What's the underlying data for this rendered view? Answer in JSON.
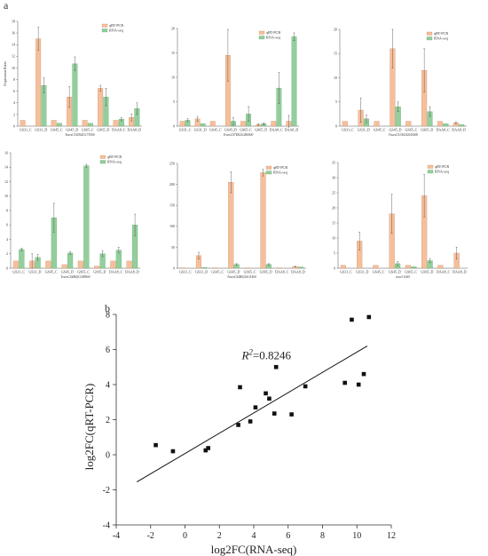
{
  "panel_labels": {
    "a": "a",
    "b": "b"
  },
  "colors": {
    "qrt": "#f6bf9b",
    "rna": "#93cf9c",
    "qrt_edge": "#c78a63",
    "rna_edge": "#5fa06a",
    "err": "#444444",
    "point": "#111111",
    "line": "#111111"
  },
  "chart_data": [
    {
      "type": "bar",
      "title": "",
      "xlabel": "TraesCS1D02G171900",
      "ylabel": "Expression Ratio",
      "ylim": [
        0,
        18
      ],
      "yticks": [
        0,
        2,
        4,
        6,
        8,
        10,
        12,
        14,
        16,
        18
      ],
      "categories": [
        "GS31_C",
        "GS31_D",
        "GS45_C",
        "GS45_D",
        "GS65_C",
        "GS65_D",
        "DAA8_C",
        "DAA8_D"
      ],
      "legend": "top-right",
      "series": [
        {
          "name": "qRT-PCR",
          "values": [
            1.0,
            15.0,
            1.0,
            5.0,
            1.0,
            6.5,
            1.0,
            1.5
          ],
          "errors": [
            0,
            2.0,
            0,
            1.8,
            0,
            0.5,
            0,
            0.6
          ]
        },
        {
          "name": "RNA-seq",
          "values": [
            0.0,
            7.0,
            0.5,
            10.7,
            0.5,
            5.0,
            1.2,
            3.0
          ],
          "errors": [
            0,
            1.3,
            0,
            1.2,
            0,
            1.5,
            0.3,
            1.0
          ]
        }
      ]
    },
    {
      "type": "bar",
      "title": "",
      "xlabel": "TraesCS7D02G286900",
      "ylabel": "",
      "ylim": [
        0,
        20
      ],
      "yticks": [
        0,
        5,
        10,
        15,
        20
      ],
      "categories": [
        "GS31_C",
        "GS31_D",
        "GS45_C",
        "GS45_D",
        "GS65_C",
        "GS65_D",
        "DAA8_C",
        "DAA8_D"
      ],
      "legend": "top-right",
      "series": [
        {
          "name": "qRT-PCR",
          "values": [
            1.0,
            1.5,
            1.0,
            14.5,
            1.0,
            0.3,
            1.0,
            1.0
          ],
          "errors": [
            0,
            0.5,
            0,
            5.3,
            0,
            0.2,
            0,
            1.2
          ]
        },
        {
          "name": "RNA-seq",
          "values": [
            1.2,
            0.5,
            0.0,
            1.0,
            2.5,
            0.5,
            7.8,
            18.3
          ],
          "errors": [
            0.3,
            0,
            0,
            0.8,
            1.5,
            0.2,
            3.2,
            0.8
          ]
        }
      ]
    },
    {
      "type": "bar",
      "title": "",
      "xlabel": "TraesCS1A02G043000",
      "ylabel": "",
      "ylim": [
        0,
        20
      ],
      "yticks": [
        0,
        5,
        10,
        15,
        20
      ],
      "categories": [
        "GS31_C",
        "GS31_D",
        "GS45_C",
        "GS45_D",
        "GS65_C",
        "GS65_D",
        "DAA8_C",
        "DAA8_D"
      ],
      "legend": "top-right",
      "series": [
        {
          "name": "qRT-PCR",
          "values": [
            1.0,
            3.3,
            1.0,
            16.0,
            1.0,
            11.5,
            1.0,
            0.7
          ],
          "errors": [
            0,
            2.5,
            0,
            4.0,
            0,
            4.5,
            0,
            0.2
          ]
        },
        {
          "name": "RNA-seq",
          "values": [
            0.0,
            1.5,
            0.0,
            4.0,
            0.0,
            3.0,
            0.5,
            0.3
          ],
          "errors": [
            0,
            0.8,
            0,
            1.0,
            0,
            1.0,
            0,
            0
          ]
        }
      ]
    },
    {
      "type": "bar",
      "title": "",
      "xlabel": "TraesCS4B02G349800",
      "ylabel": "Expression Ratio",
      "ylim": [
        0,
        16
      ],
      "yticks": [
        0,
        2,
        4,
        6,
        8,
        10,
        12,
        14,
        16
      ],
      "categories": [
        "GS31_C",
        "GS31_D",
        "GS45_C",
        "GS45_D",
        "GS65_C",
        "GS65_D",
        "DAA8_C",
        "DAA8_D"
      ],
      "legend": "top-right",
      "series": [
        {
          "name": "qRT-PCR",
          "values": [
            1.0,
            1.0,
            1.0,
            0.5,
            1.0,
            0.3,
            1.0,
            1.0
          ],
          "errors": [
            0,
            1.0,
            0,
            0,
            0,
            0,
            0,
            0
          ]
        },
        {
          "name": "RNA-seq",
          "values": [
            2.6,
            1.5,
            7.0,
            2.1,
            14.2,
            2.0,
            2.5,
            6.0
          ],
          "errors": [
            0.2,
            0.4,
            2.0,
            0.2,
            0.2,
            0.4,
            0.4,
            1.5
          ]
        }
      ]
    },
    {
      "type": "bar",
      "title": "",
      "xlabel": "TraesCS2B02G011400",
      "ylabel": "",
      "ylim": [
        0,
        250
      ],
      "yticks": [
        0,
        50,
        100,
        150,
        200,
        250
      ],
      "categories": [
        "GS31_C",
        "GS31_D",
        "GS45_C",
        "GS45_D",
        "GS65_C",
        "GS65_D",
        "DAA8_C",
        "DAA8_D"
      ],
      "legend": "top-right",
      "series": [
        {
          "name": "qRT-PCR",
          "values": [
            1.0,
            30.0,
            1.0,
            205.0,
            1.0,
            228.0,
            1.0,
            4.0
          ],
          "errors": [
            0,
            8.0,
            0,
            25.0,
            0,
            8.0,
            0,
            1.0
          ]
        },
        {
          "name": "RNA-seq",
          "values": [
            0.0,
            2.0,
            0.0,
            9.0,
            0.0,
            9.0,
            0.0,
            3.0
          ],
          "errors": [
            0,
            0,
            0,
            2.0,
            0,
            2.0,
            0,
            0
          ]
        }
      ]
    },
    {
      "type": "bar",
      "title": "",
      "xlabel": "novel.1065",
      "ylabel": "",
      "ylim": [
        0,
        35
      ],
      "yticks": [
        0,
        5,
        10,
        15,
        20,
        25,
        30,
        35
      ],
      "categories": [
        "GS31_C",
        "GS31_D",
        "GS45_C",
        "GS45_D",
        "GS65_C",
        "GS65_D",
        "DAA8_C",
        "DAA8_D"
      ],
      "legend": "top-right",
      "series": [
        {
          "name": "qRT-PCR",
          "values": [
            1.0,
            9.0,
            1.0,
            18.0,
            1.0,
            24.0,
            1.0,
            5.0
          ],
          "errors": [
            0,
            3.0,
            0,
            6.5,
            0,
            7.0,
            0,
            2.0
          ]
        },
        {
          "name": "RNA-seq",
          "values": [
            0.0,
            0.0,
            0.0,
            1.5,
            0.5,
            2.5,
            0.0,
            0.0
          ],
          "errors": [
            0,
            0,
            0,
            0.7,
            0,
            0.7,
            0,
            0
          ]
        }
      ]
    },
    {
      "type": "scatter",
      "title": "",
      "xlabel": "log2FC(RNA-seq)",
      "ylabel": "log2FC(qRT-PCR)",
      "xlim": [
        -4,
        12
      ],
      "ylim": [
        -4,
        8
      ],
      "xticks": [
        -4,
        -2,
        0,
        2,
        4,
        6,
        8,
        10,
        12
      ],
      "yticks": [
        -4,
        -2,
        0,
        2,
        4,
        6,
        8
      ],
      "annotation": "R",
      "annotation_sup": "2",
      "annotation_value": "=0.8246",
      "points": [
        {
          "x": -1.7,
          "y": 0.55
        },
        {
          "x": -0.7,
          "y": 0.2
        },
        {
          "x": 1.2,
          "y": 0.25
        },
        {
          "x": 1.35,
          "y": 0.38
        },
        {
          "x": 3.1,
          "y": 1.7
        },
        {
          "x": 3.2,
          "y": 3.85
        },
        {
          "x": 3.8,
          "y": 1.9
        },
        {
          "x": 4.1,
          "y": 2.7
        },
        {
          "x": 4.7,
          "y": 3.5
        },
        {
          "x": 4.9,
          "y": 3.2
        },
        {
          "x": 5.2,
          "y": 2.35
        },
        {
          "x": 5.3,
          "y": 5.0
        },
        {
          "x": 6.2,
          "y": 2.3
        },
        {
          "x": 7.0,
          "y": 3.9
        },
        {
          "x": 9.3,
          "y": 4.1
        },
        {
          "x": 9.7,
          "y": 7.7
        },
        {
          "x": 10.1,
          "y": 4.0
        },
        {
          "x": 10.4,
          "y": 4.6
        },
        {
          "x": 10.7,
          "y": 7.85
        }
      ],
      "fit_line": {
        "x": [
          -2.8,
          10.6
        ],
        "y": [
          -1.55,
          6.2
        ]
      }
    }
  ]
}
